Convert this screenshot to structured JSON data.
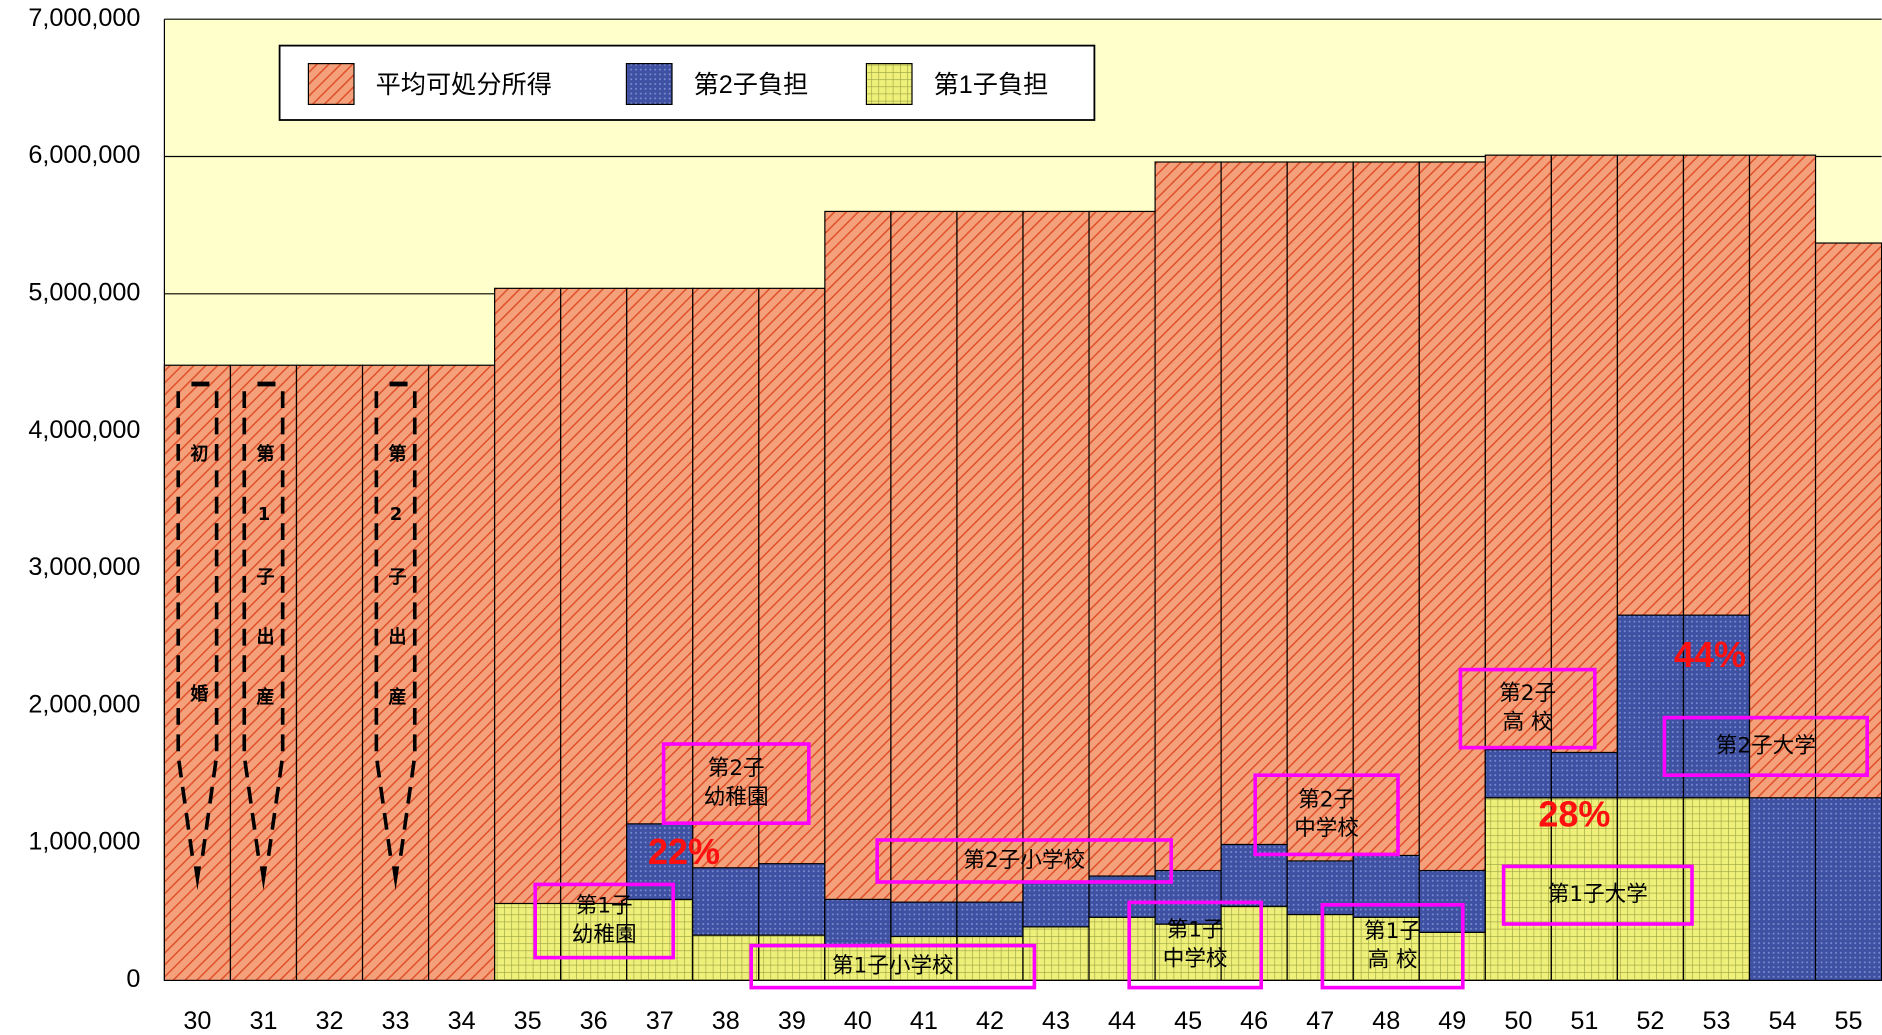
{
  "chart_data": {
    "type": "bar",
    "categories": [
      "30",
      "31",
      "32",
      "33",
      "34",
      "35",
      "36",
      "37",
      "38",
      "39",
      "40",
      "41",
      "42",
      "43",
      "44",
      "45",
      "46",
      "47",
      "48",
      "49",
      "50",
      "51",
      "52",
      "53",
      "54",
      "55"
    ],
    "series": [
      {
        "name": "平均可処分所得",
        "color": "#f4a07a",
        "values": [
          4480000,
          4480000,
          4480000,
          4480000,
          4480000,
          5040000,
          5040000,
          5040000,
          5040000,
          5040000,
          5600000,
          5600000,
          5600000,
          5600000,
          5600000,
          5960000,
          5960000,
          5960000,
          5960000,
          5960000,
          6010000,
          6010000,
          6010000,
          6010000,
          6010000,
          5370000
        ]
      },
      {
        "name": "第2子負担",
        "color": "#3f51a3",
        "values": [
          0,
          0,
          0,
          0,
          0,
          0,
          0,
          550000,
          490000,
          520000,
          330000,
          250000,
          250000,
          320000,
          300000,
          390000,
          450000,
          390000,
          450000,
          450000,
          350000,
          330000,
          1330000,
          1330000,
          1330000,
          1330000
        ]
      },
      {
        "name": "第1子負担",
        "color": "#eef07a",
        "values": [
          0,
          0,
          0,
          0,
          0,
          560000,
          560000,
          590000,
          330000,
          330000,
          260000,
          320000,
          320000,
          390000,
          460000,
          410000,
          540000,
          480000,
          460000,
          350000,
          1330000,
          1330000,
          1330000,
          1330000,
          0,
          0
        ]
      }
    ],
    "ylim": [
      0,
      7000000
    ],
    "yticks": [
      0,
      {
        "value": 1000000,
        "label": "1,000,000"
      },
      {
        "value": 2000000,
        "label": "2,000,000"
      },
      {
        "value": 3000000,
        "label": "3,000,000"
      },
      {
        "value": 4000000,
        "label": "4,000,000"
      },
      {
        "value": 5000000,
        "label": "5,000,000"
      },
      {
        "value": 6000000,
        "label": "6,000,000"
      },
      {
        "value": 7000000,
        "label": "7,000,000"
      }
    ],
    "grid": true,
    "legend_position": "top-left",
    "events": [
      "初婚",
      "第1子出産",
      "第2子出産"
    ],
    "annotations": [
      {
        "lines": [
          "第2子",
          "幼稚園"
        ]
      },
      {
        "lines": [
          "第1子",
          "幼稚園"
        ]
      },
      {
        "lines": [
          "第2子小学校"
        ]
      },
      {
        "lines": [
          "第1子小学校"
        ]
      },
      {
        "lines": [
          "第1子",
          "中学校"
        ]
      },
      {
        "lines": [
          "第2子",
          "中学校"
        ]
      },
      {
        "lines": [
          "第1子",
          "高 校"
        ]
      },
      {
        "lines": [
          "第2子",
          "高 校"
        ]
      },
      {
        "lines": [
          "第1子大学"
        ]
      },
      {
        "lines": [
          "第2子大学"
        ]
      }
    ],
    "percent_labels": [
      "22%",
      "28%",
      "44%"
    ]
  }
}
